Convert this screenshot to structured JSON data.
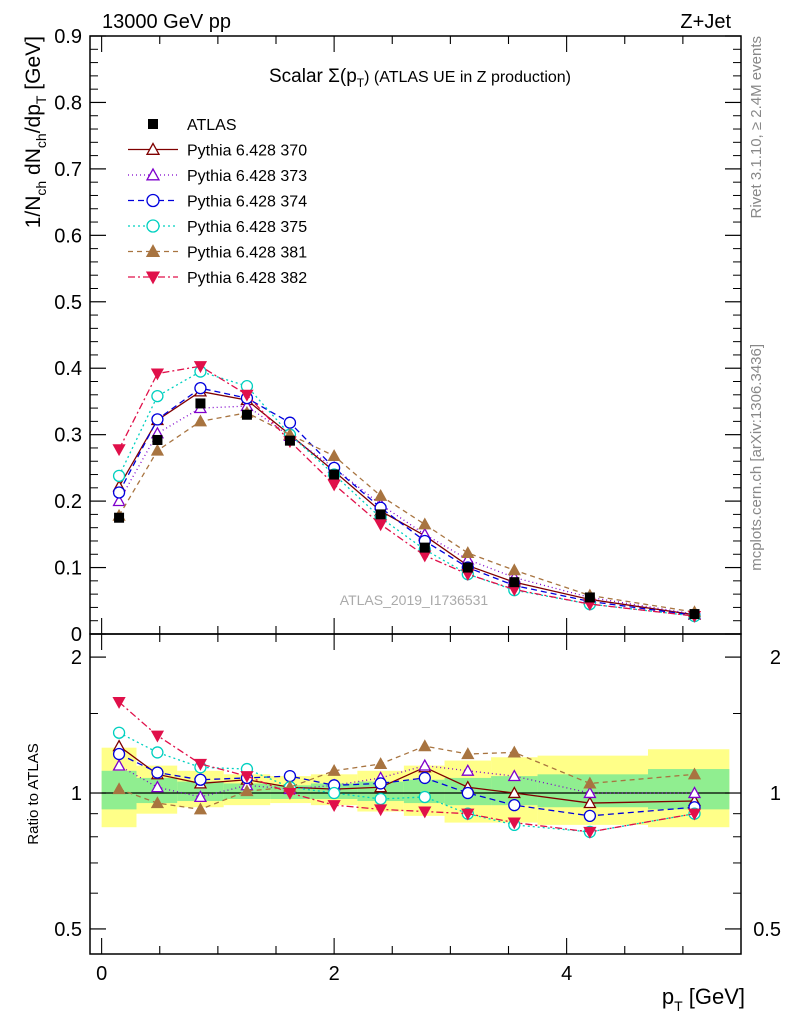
{
  "header": {
    "left": "13000 GeV pp",
    "right": "Z+Jet"
  },
  "side_labels": {
    "top": "Rivet 3.1.10, ≥ 2.4M events",
    "bottom": "mcplots.cern.ch [arXiv:1306.3436]"
  },
  "chart_data": [
    {
      "type": "line",
      "title_prefix": "Scalar Σ(p",
      "title_sub": "T",
      "title_suffix": ") (ATLAS UE in Z production)",
      "watermark": "ATLAS_2019_I1736531",
      "ylabel": {
        "a": "1/N",
        "a_sub": "ch",
        "b": " dN",
        "b_sub": "ch",
        "c": "/dp",
        "c_sub": "T",
        "d": " [GeV]"
      },
      "ylim": [
        0,
        0.9
      ],
      "yticks": [
        "0",
        "0.1",
        "0.2",
        "0.3",
        "0.4",
        "0.5",
        "0.6",
        "0.7",
        "0.8",
        "0.9"
      ],
      "x": [
        0.15,
        0.48,
        0.85,
        1.25,
        1.62,
        2.0,
        2.4,
        2.78,
        3.15,
        3.55,
        4.2,
        5.1
      ],
      "data": {
        "name": "ATLAS",
        "color": "#000000",
        "values": [
          0.175,
          0.292,
          0.347,
          0.33,
          0.291,
          0.24,
          0.18,
          0.13,
          0.1,
          0.078,
          0.055,
          0.03
        ]
      },
      "series": [
        {
          "name": "Pythia 6.428 370",
          "color": "#7f0000",
          "dash": "",
          "marker": "triangle-open",
          "values": [
            0.222,
            0.322,
            0.365,
            0.352,
            0.3,
            0.245,
            0.185,
            0.148,
            0.103,
            0.078,
            0.052,
            0.029
          ]
        },
        {
          "name": "Pythia 6.428 373",
          "color": "#7f00cc",
          "dash": "1 3",
          "marker": "triangle-open",
          "values": [
            0.2,
            0.302,
            0.34,
            0.343,
            0.298,
            0.25,
            0.195,
            0.15,
            0.112,
            0.085,
            0.055,
            0.03
          ]
        },
        {
          "name": "Pythia 6.428 374",
          "color": "#0000dd",
          "dash": "6 4",
          "marker": "circle-open",
          "values": [
            0.213,
            0.323,
            0.37,
            0.355,
            0.318,
            0.25,
            0.19,
            0.14,
            0.1,
            0.073,
            0.049,
            0.028
          ]
        },
        {
          "name": "Pythia 6.428 375",
          "color": "#00d0c0",
          "dash": "2 3",
          "marker": "circle-open",
          "values": [
            0.238,
            0.358,
            0.395,
            0.373,
            0.3,
            0.24,
            0.175,
            0.127,
            0.09,
            0.066,
            0.045,
            0.027
          ]
        },
        {
          "name": "Pythia 6.428 381",
          "color": "#a87440",
          "dash": "5 4",
          "marker": "triangle-filled",
          "values": [
            0.178,
            0.276,
            0.32,
            0.333,
            0.3,
            0.268,
            0.208,
            0.165,
            0.122,
            0.096,
            0.058,
            0.033
          ]
        },
        {
          "name": "Pythia 6.428 382",
          "color": "#e0104a",
          "dash": "7 3 2 3",
          "marker": "triangle-down-filled",
          "values": [
            0.278,
            0.392,
            0.403,
            0.36,
            0.29,
            0.225,
            0.165,
            0.118,
            0.09,
            0.067,
            0.045,
            0.027
          ]
        }
      ]
    },
    {
      "type": "line",
      "ylabel": "Ratio to ATLAS",
      "xlabel": "p",
      "xlabel_sub": "T",
      "xlabel_unit": " [GeV]",
      "yscale": "log",
      "ylim": [
        0.44,
        2.25
      ],
      "yticks": [
        "0.5",
        "1",
        "2"
      ],
      "xlim": [
        -0.1,
        5.5
      ],
      "xticks": [
        "0",
        "2",
        "4"
      ],
      "bands": [
        {
          "x0": 0.0,
          "x1": 0.3,
          "green": [
            0.92,
            1.12
          ],
          "yellow": [
            0.84,
            1.26
          ]
        },
        {
          "x0": 0.3,
          "x1": 0.65,
          "green": [
            0.95,
            1.08
          ],
          "yellow": [
            0.9,
            1.15
          ]
        },
        {
          "x0": 0.65,
          "x1": 1.05,
          "green": [
            0.96,
            1.06
          ],
          "yellow": [
            0.93,
            1.12
          ]
        },
        {
          "x0": 1.05,
          "x1": 1.45,
          "green": [
            0.97,
            1.05
          ],
          "yellow": [
            0.94,
            1.1
          ]
        },
        {
          "x0": 1.45,
          "x1": 1.8,
          "green": [
            0.97,
            1.04
          ],
          "yellow": [
            0.95,
            1.09
          ]
        },
        {
          "x0": 1.8,
          "x1": 2.2,
          "green": [
            0.97,
            1.05
          ],
          "yellow": [
            0.94,
            1.1
          ]
        },
        {
          "x0": 2.2,
          "x1": 2.6,
          "green": [
            0.96,
            1.06
          ],
          "yellow": [
            0.91,
            1.12
          ]
        },
        {
          "x0": 2.6,
          "x1": 2.95,
          "green": [
            0.95,
            1.07
          ],
          "yellow": [
            0.89,
            1.15
          ]
        },
        {
          "x0": 2.95,
          "x1": 3.35,
          "green": [
            0.94,
            1.08
          ],
          "yellow": [
            0.86,
            1.18
          ]
        },
        {
          "x0": 3.35,
          "x1": 3.75,
          "green": [
            0.94,
            1.09
          ],
          "yellow": [
            0.86,
            1.2
          ]
        },
        {
          "x0": 3.75,
          "x1": 4.7,
          "green": [
            0.93,
            1.1
          ],
          "yellow": [
            0.85,
            1.21
          ]
        },
        {
          "x0": 4.7,
          "x1": 5.4,
          "green": [
            0.92,
            1.13
          ],
          "yellow": [
            0.84,
            1.25
          ]
        }
      ],
      "series_ratios": [
        [
          1.27,
          1.1,
          1.05,
          1.07,
          1.03,
          1.02,
          1.03,
          1.14,
          1.03,
          1.0,
          0.95,
          0.96
        ],
        [
          1.15,
          1.03,
          0.98,
          1.04,
          1.02,
          1.04,
          1.08,
          1.15,
          1.12,
          1.09,
          1.0,
          1.0
        ],
        [
          1.22,
          1.11,
          1.07,
          1.08,
          1.09,
          1.04,
          1.05,
          1.08,
          1.0,
          0.94,
          0.89,
          0.93
        ],
        [
          1.36,
          1.23,
          1.14,
          1.13,
          1.03,
          1.0,
          0.97,
          0.98,
          0.9,
          0.85,
          0.82,
          0.9
        ],
        [
          1.02,
          0.95,
          0.92,
          1.01,
          1.03,
          1.12,
          1.16,
          1.27,
          1.22,
          1.23,
          1.05,
          1.1
        ],
        [
          1.59,
          1.34,
          1.16,
          1.09,
          1.0,
          0.94,
          0.92,
          0.91,
          0.9,
          0.86,
          0.82,
          0.9
        ]
      ]
    }
  ]
}
